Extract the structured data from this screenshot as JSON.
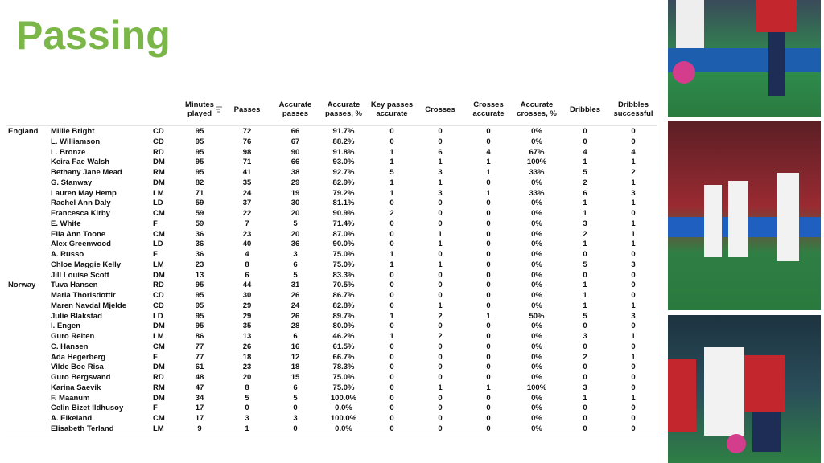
{
  "title": "Passing",
  "table": {
    "columns": [
      "Minutes played",
      "Passes",
      "Accurate passes",
      "Accurate passes, %",
      "Key passes accurate",
      "Crosses",
      "Crosses accurate",
      "Accurate crosses, %",
      "Dribbles",
      "Dribbles successful"
    ],
    "groups": [
      {
        "team": "England",
        "rows": [
          [
            "Millie Bright",
            "CD",
            95,
            72,
            66,
            "91.7%",
            0,
            0,
            0,
            "0%",
            0,
            0
          ],
          [
            "L. Williamson",
            "CD",
            95,
            76,
            67,
            "88.2%",
            0,
            0,
            0,
            "0%",
            0,
            0
          ],
          [
            "L. Bronze",
            "RD",
            95,
            98,
            90,
            "91.8%",
            1,
            6,
            4,
            "67%",
            4,
            4
          ],
          [
            "Keira Fae Walsh",
            "DM",
            95,
            71,
            66,
            "93.0%",
            1,
            1,
            1,
            "100%",
            1,
            1
          ],
          [
            "Bethany Jane Mead",
            "RM",
            95,
            41,
            38,
            "92.7%",
            5,
            3,
            1,
            "33%",
            5,
            2
          ],
          [
            "G. Stanway",
            "DM",
            82,
            35,
            29,
            "82.9%",
            1,
            1,
            0,
            "0%",
            2,
            1
          ],
          [
            "Lauren May Hemp",
            "LM",
            71,
            24,
            19,
            "79.2%",
            1,
            3,
            1,
            "33%",
            6,
            3
          ],
          [
            "Rachel Ann Daly",
            "LD",
            59,
            37,
            30,
            "81.1%",
            0,
            0,
            0,
            "0%",
            1,
            1
          ],
          [
            "Francesca Kirby",
            "CM",
            59,
            22,
            20,
            "90.9%",
            2,
            0,
            0,
            "0%",
            1,
            0
          ],
          [
            "E. White",
            "F",
            59,
            7,
            5,
            "71.4%",
            0,
            0,
            0,
            "0%",
            3,
            1
          ],
          [
            "Ella Ann Toone",
            "CM",
            36,
            23,
            20,
            "87.0%",
            0,
            1,
            0,
            "0%",
            2,
            1
          ],
          [
            "Alex Greenwood",
            "LD",
            36,
            40,
            36,
            "90.0%",
            0,
            1,
            0,
            "0%",
            1,
            1
          ],
          [
            "A. Russo",
            "F",
            36,
            4,
            3,
            "75.0%",
            1,
            0,
            0,
            "0%",
            0,
            0
          ],
          [
            "Chloe Maggie Kelly",
            "LM",
            23,
            8,
            6,
            "75.0%",
            1,
            1,
            0,
            "0%",
            5,
            3
          ],
          [
            "Jill Louise Scott",
            "DM",
            13,
            6,
            5,
            "83.3%",
            0,
            0,
            0,
            "0%",
            0,
            0
          ]
        ]
      },
      {
        "team": "Norway",
        "rows": [
          [
            "Tuva Hansen",
            "RD",
            95,
            44,
            31,
            "70.5%",
            0,
            0,
            0,
            "0%",
            1,
            0
          ],
          [
            "Maria Thorisdottir",
            "CD",
            95,
            30,
            26,
            "86.7%",
            0,
            0,
            0,
            "0%",
            1,
            0
          ],
          [
            "Maren Navdal Mjelde",
            "CD",
            95,
            29,
            24,
            "82.8%",
            0,
            1,
            0,
            "0%",
            1,
            1
          ],
          [
            "Julie Blakstad",
            "LD",
            95,
            29,
            26,
            "89.7%",
            1,
            2,
            1,
            "50%",
            5,
            3
          ],
          [
            "I. Engen",
            "DM",
            95,
            35,
            28,
            "80.0%",
            0,
            0,
            0,
            "0%",
            0,
            0
          ],
          [
            "Guro Reiten",
            "LM",
            86,
            13,
            6,
            "46.2%",
            1,
            2,
            0,
            "0%",
            3,
            1
          ],
          [
            "C. Hansen",
            "CM",
            77,
            26,
            16,
            "61.5%",
            0,
            0,
            0,
            "0%",
            0,
            0
          ],
          [
            "Ada Hegerberg",
            "F",
            77,
            18,
            12,
            "66.7%",
            0,
            0,
            0,
            "0%",
            2,
            1
          ],
          [
            "Vilde Boe Risa",
            "DM",
            61,
            23,
            18,
            "78.3%",
            0,
            0,
            0,
            "0%",
            0,
            0
          ],
          [
            "Guro Bergsvand",
            "RD",
            48,
            20,
            15,
            "75.0%",
            0,
            0,
            0,
            "0%",
            0,
            0
          ],
          [
            "Karina Saevik",
            "RM",
            47,
            8,
            6,
            "75.0%",
            0,
            1,
            1,
            "100%",
            3,
            0
          ],
          [
            "F. Maanum",
            "DM",
            34,
            5,
            5,
            "100.0%",
            0,
            0,
            0,
            "0%",
            1,
            1
          ],
          [
            "Celin Bizet Ildhusoy",
            "F",
            17,
            0,
            0,
            "0.0%",
            0,
            0,
            0,
            "0%",
            0,
            0
          ],
          [
            "A. Eikeland",
            "CM",
            17,
            3,
            3,
            "100.0%",
            0,
            0,
            0,
            "0%",
            0,
            0
          ],
          [
            "Elisabeth Terland",
            "LM",
            9,
            1,
            0,
            "0.0%",
            0,
            0,
            0,
            "0%",
            0,
            0
          ]
        ]
      }
    ]
  }
}
